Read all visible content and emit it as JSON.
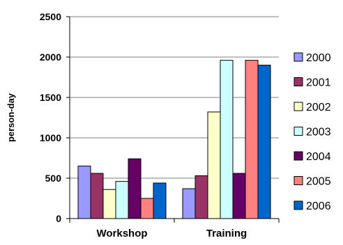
{
  "chart_data": {
    "type": "bar",
    "title": "",
    "xlabel": "",
    "ylabel": "person-day",
    "ylim": [
      0,
      2500
    ],
    "yticks": [
      "0",
      "500",
      "1000",
      "1500",
      "2000",
      "2500"
    ],
    "categories": [
      "Workshop",
      "Training"
    ],
    "grid": true,
    "legend_position": "right",
    "series": [
      {
        "name": "2000",
        "color": "#9999ff",
        "values": [
          650,
          370
        ]
      },
      {
        "name": "2001",
        "color": "#993366",
        "values": [
          560,
          530
        ]
      },
      {
        "name": "2002",
        "color": "#ffffcc",
        "values": [
          360,
          1320
        ]
      },
      {
        "name": "2003",
        "color": "#ccffff",
        "values": [
          460,
          1960
        ]
      },
      {
        "name": "2004",
        "color": "#660066",
        "values": [
          740,
          560
        ]
      },
      {
        "name": "2005",
        "color": "#ff8080",
        "values": [
          250,
          1960
        ]
      },
      {
        "name": "2006",
        "color": "#0066cc",
        "values": [
          440,
          1900
        ]
      }
    ]
  }
}
